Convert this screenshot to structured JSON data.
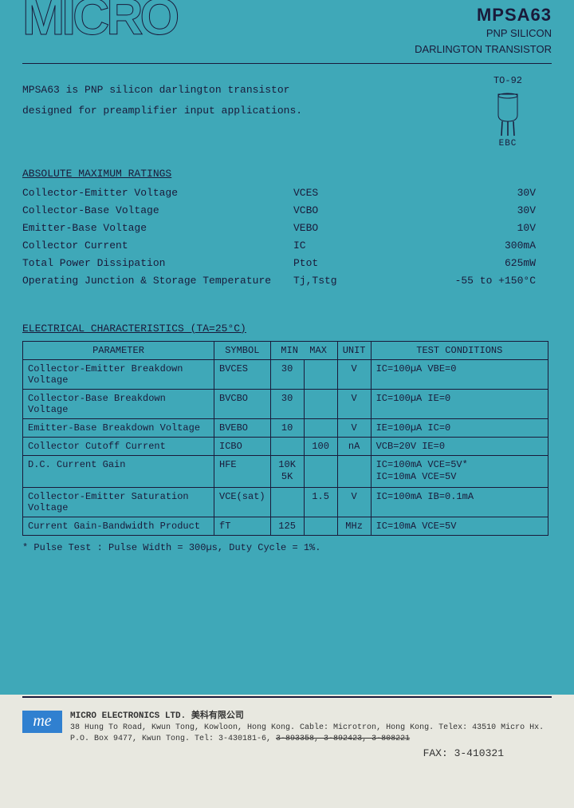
{
  "header": {
    "logo_text": "MICRO",
    "part_number": "MPSA63",
    "subtitle_1": "PNP SILICON",
    "subtitle_2": "DARLINGTON TRANSISTOR"
  },
  "intro": {
    "line1": "MPSA63 is PNP silicon darlington transistor",
    "line2": "designed for preamplifier input applications."
  },
  "package": {
    "type": "TO-92",
    "pins": "EBC"
  },
  "ratings": {
    "heading": "ABSOLUTE MAXIMUM RATINGS",
    "rows": [
      {
        "param": "Collector-Emitter Voltage",
        "symbol": "VCES",
        "value": "30V"
      },
      {
        "param": "Collector-Base Voltage",
        "symbol": "VCBO",
        "value": "30V"
      },
      {
        "param": "Emitter-Base Voltage",
        "symbol": "VEBO",
        "value": "10V"
      },
      {
        "param": "Collector Current",
        "symbol": "IC",
        "value": "300mA"
      },
      {
        "param": "Total Power Dissipation",
        "symbol": "Ptot",
        "value": "625mW"
      },
      {
        "param": "Operating Junction & Storage Temperature",
        "symbol": "Tj,Tstg",
        "value": "-55 to +150°C"
      }
    ]
  },
  "elec": {
    "heading": "ELECTRICAL CHARACTERISTICS (TA=25°C)",
    "columns": [
      "PARAMETER",
      "SYMBOL",
      "MIN",
      "MAX",
      "UNIT",
      "TEST CONDITIONS"
    ],
    "rows": [
      {
        "param": "Collector-Emitter Breakdown Voltage",
        "symbol": "BVCES",
        "min": "30",
        "max": "",
        "unit": "V",
        "cond": "IC=100µA VBE=0"
      },
      {
        "param": "Collector-Base Breakdown Voltage",
        "symbol": "BVCBO",
        "min": "30",
        "max": "",
        "unit": "V",
        "cond": "IC=100µA IE=0"
      },
      {
        "param": "Emitter-Base Breakdown Voltage",
        "symbol": "BVEBO",
        "min": "10",
        "max": "",
        "unit": "V",
        "cond": "IE=100µA IC=0"
      },
      {
        "param": "Collector Cutoff Current",
        "symbol": "ICBO",
        "min": "",
        "max": "100",
        "unit": "nA",
        "cond": "VCB=20V  IE=0"
      },
      {
        "param": "D.C. Current Gain",
        "symbol": "HFE",
        "min": "10K\n5K",
        "max": "",
        "unit": "",
        "cond": "IC=100mA VCE=5V*\nIC=10mA  VCE=5V"
      },
      {
        "param": "Collector-Emitter Saturation Voltage",
        "symbol": "VCE(sat)",
        "min": "",
        "max": "1.5",
        "unit": "V",
        "cond": "IC=100mA IB=0.1mA"
      },
      {
        "param": "Current Gain-Bandwidth Product",
        "symbol": "fT",
        "min": "125",
        "max": "",
        "unit": "MHz",
        "cond": "IC=10mA  VCE=5V"
      }
    ],
    "note": "* Pulse Test : Pulse Width = 300µs, Duty Cycle = 1%."
  },
  "footer": {
    "logo": "me",
    "company": "MICRO ELECTRONICS LTD.  美科有限公司",
    "addr": "38 Hung To Road, Kwun Tong, Kowloon, Hong Kong. Cable: Microtron, Hong Kong. Telex: 43510 Micro Hx.",
    "po": "P.O. Box 9477, Kwun Tong. Tel: 3-430181-6, ",
    "struck": "3-893358, 3-892423, 3-808221",
    "fax": "FAX: 3-410321"
  },
  "colors": {
    "bg_cyan": "#3fa8b8",
    "bg_white": "#e8e8e0",
    "ink": "#1a1a3a",
    "logo_blue": "#3080d0"
  }
}
